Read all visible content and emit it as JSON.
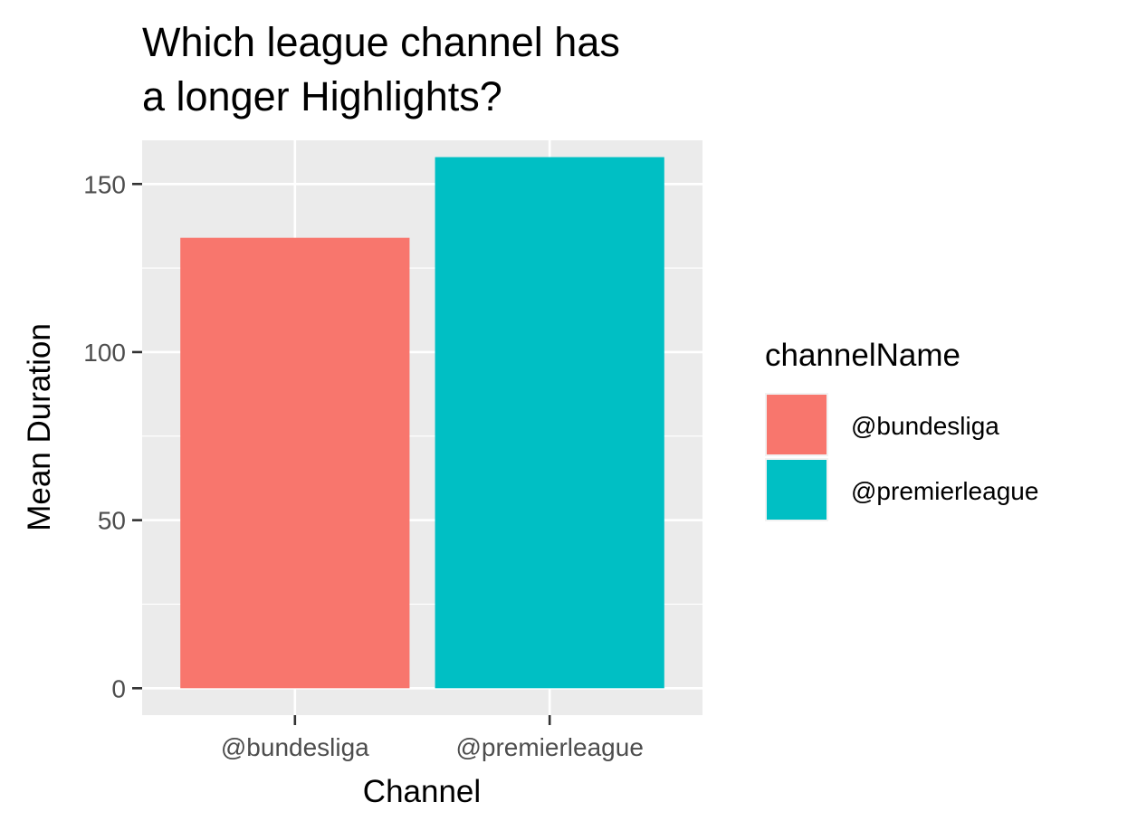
{
  "chart_data": {
    "type": "bar",
    "title_lines": [
      "Which league channel has",
      "a longer Highlights?"
    ],
    "xlabel": "Channel",
    "ylabel": "Mean Duration",
    "categories": [
      "@bundesliga",
      "@premierleague"
    ],
    "values": [
      134,
      158
    ],
    "colors": [
      "#F8766D",
      "#00BFC4"
    ],
    "ylim": [
      -8,
      163
    ],
    "yticks": [
      0,
      50,
      100,
      150
    ],
    "ytick_labels": [
      "0",
      "50",
      "100",
      "150"
    ],
    "grid": true,
    "panel_background": "#EBEBEB",
    "legend": {
      "title": "channelName",
      "position": "right",
      "entries": [
        "@bundesliga",
        "@premierleague"
      ]
    }
  }
}
